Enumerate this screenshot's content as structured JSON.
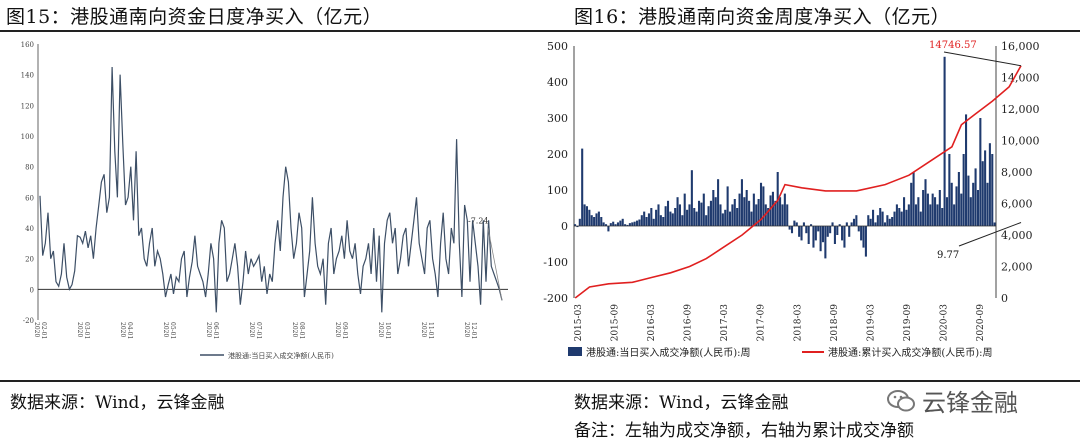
{
  "left_panel": {
    "title": "图15：港股通南向资金日度净买入（亿元）",
    "source": "数据来源：Wind，云锋金融"
  },
  "right_panel": {
    "title": "图16：港股通南向资金周度净买入（亿元）",
    "source": "数据来源：Wind，云锋金融",
    "note": "备注：左轴为成交净额，右轴为累计成交净额"
  },
  "watermark": {
    "text": "云锋金融",
    "icon": "wechat-icon"
  },
  "colors": {
    "line_dark": "#3d4f66",
    "bar_navy": "#1f3a6e",
    "cum_red": "#e02020",
    "annotation_red": "#e02020"
  },
  "chart_data": [
    {
      "type": "line",
      "ylim": [
        -20,
        160
      ],
      "yticks": [
        "-20",
        "0",
        "20",
        "40",
        "60",
        "80",
        "100",
        "120",
        "140",
        "160"
      ],
      "xticks": [
        "02-01",
        "03-01",
        "04-01",
        "05-01",
        "06-01",
        "07-01",
        "08-01",
        "09-01",
        "10-01",
        "11-01",
        "12-01"
      ],
      "xtick_suffix": "2020",
      "legend": "港股通:当日买入成交净额(人民币)",
      "annotation": "-7.24",
      "series": [
        {
          "name": "港股通:当日买入成交净额(人民币)",
          "values": [
            61,
            22,
            30,
            50,
            20,
            25,
            5,
            2,
            10,
            30,
            8,
            0,
            3,
            12,
            35,
            34,
            30,
            38,
            27,
            35,
            20,
            40,
            55,
            70,
            75,
            50,
            60,
            145,
            90,
            60,
            140,
            95,
            55,
            60,
            80,
            45,
            90,
            35,
            40,
            20,
            15,
            30,
            40,
            15,
            25,
            20,
            10,
            -5,
            3,
            10,
            -3,
            8,
            5,
            20,
            25,
            -5,
            8,
            18,
            35,
            15,
            10,
            5,
            -5,
            10,
            30,
            20,
            -15,
            30,
            45,
            40,
            5,
            10,
            20,
            30,
            15,
            -10,
            5,
            25,
            10,
            20,
            15,
            18,
            22,
            5,
            15,
            -3,
            10,
            5,
            30,
            45,
            25,
            60,
            80,
            70,
            40,
            20,
            30,
            50,
            40,
            -5,
            10,
            25,
            60,
            30,
            15,
            10,
            20,
            -10,
            30,
            40,
            10,
            20,
            25,
            35,
            20,
            45,
            25,
            20,
            30,
            10,
            -3,
            15,
            20,
            30,
            10,
            40,
            5,
            35,
            -15,
            30,
            45,
            50,
            30,
            40,
            10,
            20,
            35,
            40,
            15,
            30,
            45,
            60,
            30,
            20,
            10,
            40,
            45,
            20,
            10,
            -5,
            30,
            50,
            20,
            10,
            40,
            30,
            98,
            30,
            -5,
            55,
            45,
            5,
            45,
            30,
            15,
            -10,
            45,
            5,
            45,
            15,
            10,
            5,
            0,
            -7.24
          ]
        }
      ]
    },
    {
      "type": "bar",
      "ylim": [
        -200,
        500
      ],
      "y2lim": [
        0,
        16000
      ],
      "yticks": [
        "-200",
        "-100",
        "0",
        "100",
        "200",
        "300",
        "400",
        "500"
      ],
      "y2ticks": [
        "0",
        "2,000",
        "4,000",
        "6,000",
        "8,000",
        "10,000",
        "12,000",
        "14,000",
        "16,000"
      ],
      "xticks": [
        "2015-03",
        "2015-09",
        "2016-03",
        "2016-09",
        "2017-03",
        "2017-09",
        "2018-03",
        "2018-09",
        "2019-03",
        "2019-09",
        "2020-03",
        "2020-09"
      ],
      "annotations": [
        "14746.57",
        "9.77"
      ],
      "series": [
        {
          "name": "港股通:当日买入成交净额(人民币):周",
          "type": "bar",
          "values": [
            5,
            -3,
            20,
            215,
            60,
            55,
            45,
            30,
            25,
            35,
            40,
            25,
            10,
            5,
            -15,
            8,
            12,
            5,
            10,
            15,
            20,
            5,
            3,
            8,
            10,
            12,
            15,
            18,
            30,
            40,
            25,
            35,
            50,
            20,
            45,
            60,
            30,
            25,
            55,
            70,
            40,
            35,
            50,
            80,
            60,
            30,
            90,
            45,
            60,
            155,
            50,
            40,
            70,
            65,
            90,
            30,
            55,
            70,
            100,
            80,
            130,
            60,
            35,
            45,
            110,
            40,
            60,
            75,
            50,
            90,
            130,
            80,
            100,
            70,
            40,
            90,
            60,
            75,
            120,
            110,
            60,
            50,
            85,
            95,
            70,
            150,
            80,
            60,
            90,
            60,
            -10,
            -20,
            15,
            10,
            -30,
            -40,
            10,
            -20,
            -50,
            5,
            -60,
            -40,
            -15,
            -70,
            -45,
            -90,
            -30,
            -20,
            10,
            -50,
            -25,
            5,
            -40,
            -60,
            10,
            -30,
            10,
            20,
            30,
            -15,
            -40,
            -60,
            -85,
            30,
            20,
            45,
            10,
            30,
            50,
            40,
            10,
            30,
            20,
            25,
            40,
            60,
            50,
            40,
            80,
            45,
            60,
            120,
            150,
            60,
            80,
            40,
            100,
            130,
            90,
            60,
            90,
            80,
            60,
            100,
            50,
            470,
            80,
            200,
            120,
            60,
            110,
            150,
            90,
            200,
            310,
            140,
            80,
            120,
            160,
            100,
            300,
            180,
            210,
            120,
            230,
            200,
            9.77
          ]
        },
        {
          "name": "港股通:累计买入成交净额(人民币):周",
          "type": "line",
          "axis": "right",
          "values": [
            [
              0,
              0
            ],
            [
              6,
              700
            ],
            [
              14,
              900
            ],
            [
              24,
              1000
            ],
            [
              32,
              1300
            ],
            [
              40,
              1600
            ],
            [
              48,
              2000
            ],
            [
              55,
              2500
            ],
            [
              62,
              3200
            ],
            [
              70,
              4000
            ],
            [
              78,
              5000
            ],
            [
              85,
              6200
            ],
            [
              88,
              7200
            ],
            [
              95,
              7000
            ],
            [
              105,
              6800
            ],
            [
              118,
              6800
            ],
            [
              130,
              7200
            ],
            [
              140,
              7800
            ],
            [
              150,
              8800
            ],
            [
              158,
              9600
            ],
            [
              162,
              11000
            ],
            [
              168,
              11700
            ],
            [
              175,
              12500
            ],
            [
              182,
              13400
            ],
            [
              187,
              14746.57
            ]
          ]
        }
      ]
    }
  ]
}
